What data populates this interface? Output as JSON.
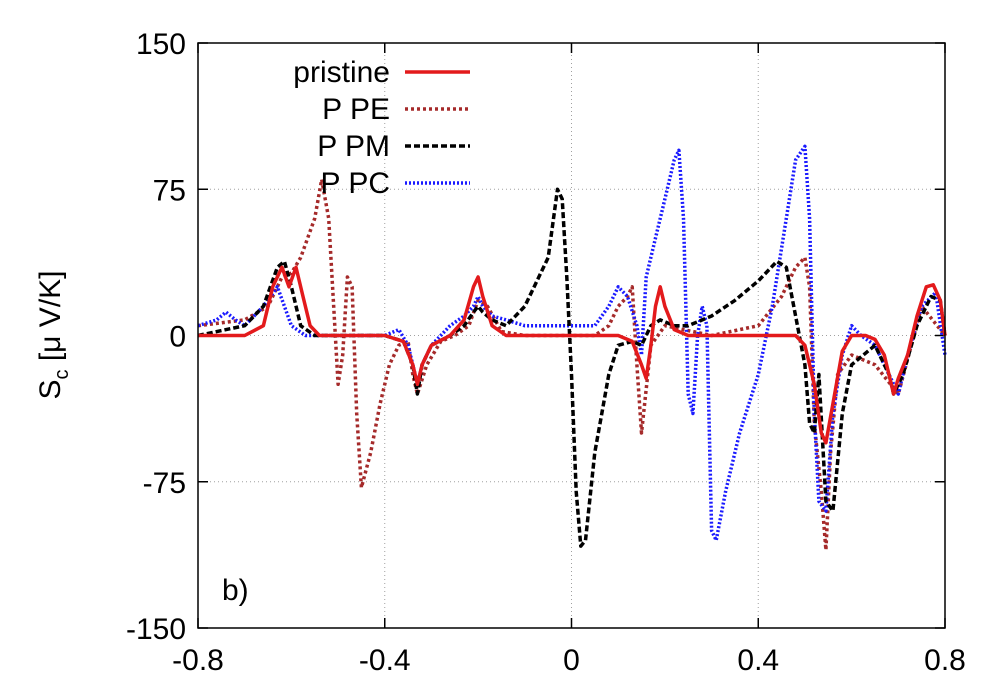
{
  "chart_data": {
    "type": "line",
    "title": "",
    "panel_label": "b)",
    "ylabel": "S_c [μ V/K]",
    "ylabel_main": "S",
    "ylabel_sub": "c",
    "ylabel_rest": " [μ V/K]",
    "xlabel": "",
    "xlim": [
      -0.8,
      0.8
    ],
    "ylim": [
      -150,
      150
    ],
    "x_ticks": [
      -0.8,
      -0.4,
      0,
      0.4,
      0.8
    ],
    "x_tick_labels": [
      "-0.8",
      "-0.4",
      "0",
      "0.4",
      "0.8"
    ],
    "y_ticks": [
      -150,
      -75,
      0,
      75,
      150
    ],
    "y_tick_labels": [
      "-150",
      "-75",
      "0",
      "75",
      "150"
    ],
    "grid": true,
    "legend_position": "top-left",
    "series": [
      {
        "name": "pristine",
        "color": "#e31a1c",
        "style": "solid",
        "x": [
          -0.8,
          -0.7,
          -0.66,
          -0.64,
          -0.62,
          -0.605,
          -0.59,
          -0.575,
          -0.56,
          -0.54,
          -0.5,
          -0.4,
          -0.36,
          -0.34,
          -0.33,
          -0.32,
          -0.3,
          -0.26,
          -0.23,
          -0.21,
          -0.2,
          -0.19,
          -0.17,
          -0.14,
          -0.1,
          0,
          0.1,
          0.13,
          0.15,
          0.16,
          0.17,
          0.18,
          0.19,
          0.2,
          0.22,
          0.25,
          0.3,
          0.4,
          0.48,
          0.5,
          0.52,
          0.535,
          0.545,
          0.56,
          0.58,
          0.6,
          0.63,
          0.65,
          0.67,
          0.69,
          0.7,
          0.72,
          0.74,
          0.76,
          0.775,
          0.79,
          0.8
        ],
        "y": [
          0,
          0,
          5,
          25,
          35,
          25,
          35,
          20,
          5,
          0,
          0,
          0,
          -3,
          -15,
          -25,
          -15,
          -5,
          0,
          8,
          25,
          30,
          20,
          5,
          0,
          0,
          0,
          0,
          -3,
          -15,
          -22,
          -5,
          15,
          25,
          15,
          3,
          0,
          0,
          0,
          0,
          -5,
          -25,
          -50,
          -55,
          -35,
          -8,
          0,
          0,
          -2,
          -10,
          -30,
          -22,
          -10,
          10,
          25,
          26,
          18,
          0
        ]
      },
      {
        "name": "P PE",
        "color": "#a52a2a",
        "style": "dotted",
        "x": [
          -0.8,
          -0.7,
          -0.65,
          -0.62,
          -0.6,
          -0.58,
          -0.55,
          -0.535,
          -0.52,
          -0.5,
          -0.49,
          -0.48,
          -0.47,
          -0.46,
          -0.45,
          -0.43,
          -0.41,
          -0.39,
          -0.37,
          -0.35,
          -0.34,
          -0.33,
          -0.31,
          -0.28,
          -0.25,
          -0.22,
          -0.2,
          -0.18,
          -0.15,
          -0.1,
          0,
          0.05,
          0.08,
          0.1,
          0.12,
          0.13,
          0.14,
          0.15,
          0.17,
          0.2,
          0.3,
          0.4,
          0.45,
          0.48,
          0.5,
          0.51,
          0.52,
          0.535,
          0.545,
          0.555,
          0.57,
          0.6,
          0.65,
          0.7,
          0.75,
          0.8
        ],
        "y": [
          5,
          8,
          15,
          30,
          32,
          40,
          60,
          80,
          60,
          -25,
          -10,
          30,
          25,
          -40,
          -78,
          -60,
          -35,
          -15,
          -5,
          -3,
          -20,
          -30,
          -15,
          -3,
          0,
          5,
          18,
          15,
          2,
          0,
          0,
          0,
          5,
          15,
          20,
          25,
          -15,
          -50,
          -5,
          5,
          0,
          5,
          20,
          35,
          40,
          25,
          -45,
          -80,
          -110,
          -60,
          -20,
          -10,
          -15,
          -30,
          15,
          0
        ]
      },
      {
        "name": "P PM",
        "color": "#000000",
        "style": "dashed",
        "x": [
          -0.8,
          -0.7,
          -0.66,
          -0.63,
          -0.615,
          -0.6,
          -0.58,
          -0.55,
          -0.5,
          -0.4,
          -0.36,
          -0.34,
          -0.33,
          -0.32,
          -0.3,
          -0.26,
          -0.23,
          -0.21,
          -0.2,
          -0.19,
          -0.17,
          -0.14,
          -0.1,
          -0.05,
          -0.03,
          -0.02,
          -0.01,
          0.0,
          0.01,
          0.02,
          0.03,
          0.05,
          0.08,
          0.1,
          0.13,
          0.15,
          0.17,
          0.19,
          0.22,
          0.25,
          0.3,
          0.35,
          0.4,
          0.44,
          0.46,
          0.48,
          0.5,
          0.51,
          0.52,
          0.53,
          0.545,
          0.56,
          0.58,
          0.6,
          0.65,
          0.68,
          0.69,
          0.71,
          0.74,
          0.77,
          0.79,
          0.8
        ],
        "y": [
          0,
          5,
          15,
          35,
          38,
          25,
          5,
          0,
          0,
          0,
          -3,
          -15,
          -30,
          -15,
          -5,
          0,
          5,
          12,
          15,
          12,
          8,
          5,
          15,
          40,
          75,
          70,
          30,
          -20,
          -80,
          -108,
          -105,
          -60,
          -20,
          -5,
          -3,
          -5,
          5,
          8,
          5,
          5,
          10,
          18,
          28,
          38,
          35,
          10,
          -15,
          -45,
          -50,
          -20,
          -85,
          -90,
          -40,
          -15,
          -5,
          -20,
          -30,
          -20,
          5,
          20,
          18,
          0
        ]
      },
      {
        "name": "P PC",
        "color": "#1a1aff",
        "style": "dotted",
        "x": [
          -0.8,
          -0.76,
          -0.74,
          -0.72,
          -0.7,
          -0.66,
          -0.63,
          -0.6,
          -0.57,
          -0.5,
          -0.45,
          -0.4,
          -0.37,
          -0.35,
          -0.34,
          -0.33,
          -0.32,
          -0.3,
          -0.26,
          -0.23,
          -0.21,
          -0.2,
          -0.19,
          -0.17,
          -0.14,
          -0.1,
          0,
          0.05,
          0.08,
          0.1,
          0.12,
          0.14,
          0.15,
          0.16,
          0.18,
          0.2,
          0.22,
          0.23,
          0.24,
          0.25,
          0.26,
          0.27,
          0.28,
          0.29,
          0.3,
          0.31,
          0.33,
          0.36,
          0.4,
          0.43,
          0.46,
          0.48,
          0.5,
          0.51,
          0.52,
          0.53,
          0.545,
          0.56,
          0.58,
          0.6,
          0.62,
          0.65,
          0.68,
          0.7,
          0.72,
          0.75,
          0.78,
          0.8
        ],
        "y": [
          5,
          8,
          12,
          8,
          5,
          15,
          25,
          5,
          0,
          0,
          0,
          0,
          3,
          -5,
          -15,
          -25,
          -15,
          -5,
          5,
          10,
          15,
          20,
          15,
          10,
          8,
          5,
          5,
          5,
          15,
          25,
          20,
          5,
          -10,
          30,
          50,
          70,
          90,
          95,
          60,
          -30,
          -40,
          0,
          15,
          5,
          -100,
          -105,
          -80,
          -50,
          -20,
          15,
          60,
          90,
          97,
          60,
          -40,
          -85,
          -90,
          -40,
          -10,
          5,
          0,
          -5,
          -20,
          -30,
          -10,
          15,
          22,
          -10
        ]
      }
    ]
  }
}
